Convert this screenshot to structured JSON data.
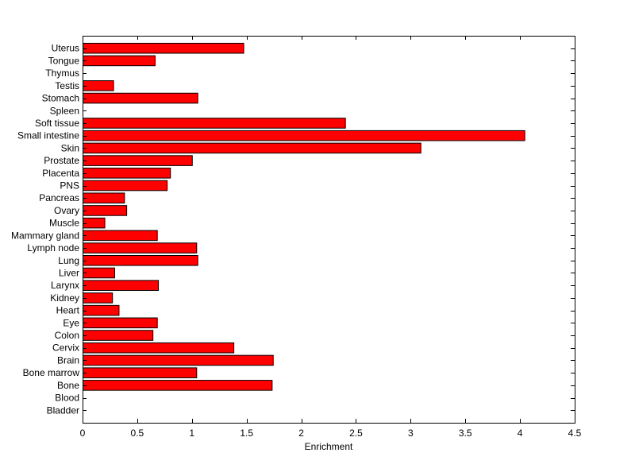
{
  "chart_data": {
    "type": "bar",
    "orientation": "horizontal",
    "title": "",
    "xlabel": "Enrichment",
    "ylabel": "",
    "xlim": [
      0,
      4.5
    ],
    "xticks": [
      0,
      0.5,
      1,
      1.5,
      2,
      2.5,
      3,
      3.5,
      4,
      4.5
    ],
    "xtick_labels": [
      "0",
      "0.5",
      "1",
      "1.5",
      "2",
      "2.5",
      "3",
      "3.5",
      "4",
      "4.5"
    ],
    "grid": false,
    "bar_color": "#ff0000",
    "bar_edge_color": "#000000",
    "categories": [
      "Uterus",
      "Tongue",
      "Thymus",
      "Testis",
      "Stomach",
      "Spleen",
      "Soft tissue",
      "Small intestine",
      "Skin",
      "Prostate",
      "Placenta",
      "PNS",
      "Pancreas",
      "Ovary",
      "Muscle",
      "Mammary gland",
      "Lymph node",
      "Lung",
      "Liver",
      "Larynx",
      "Kidney",
      "Heart",
      "Eye",
      "Colon",
      "Cervix",
      "Brain",
      "Bone marrow",
      "Bone",
      "Blood",
      "Bladder"
    ],
    "values": [
      1.47,
      0.66,
      0,
      0.28,
      1.05,
      0,
      2.4,
      4.04,
      3.09,
      1.0,
      0.8,
      0.77,
      0.38,
      0.4,
      0.2,
      0.68,
      1.04,
      1.05,
      0.29,
      0.69,
      0.27,
      0.33,
      0.68,
      0.64,
      1.38,
      1.74,
      1.04,
      1.73,
      0,
      0
    ]
  }
}
